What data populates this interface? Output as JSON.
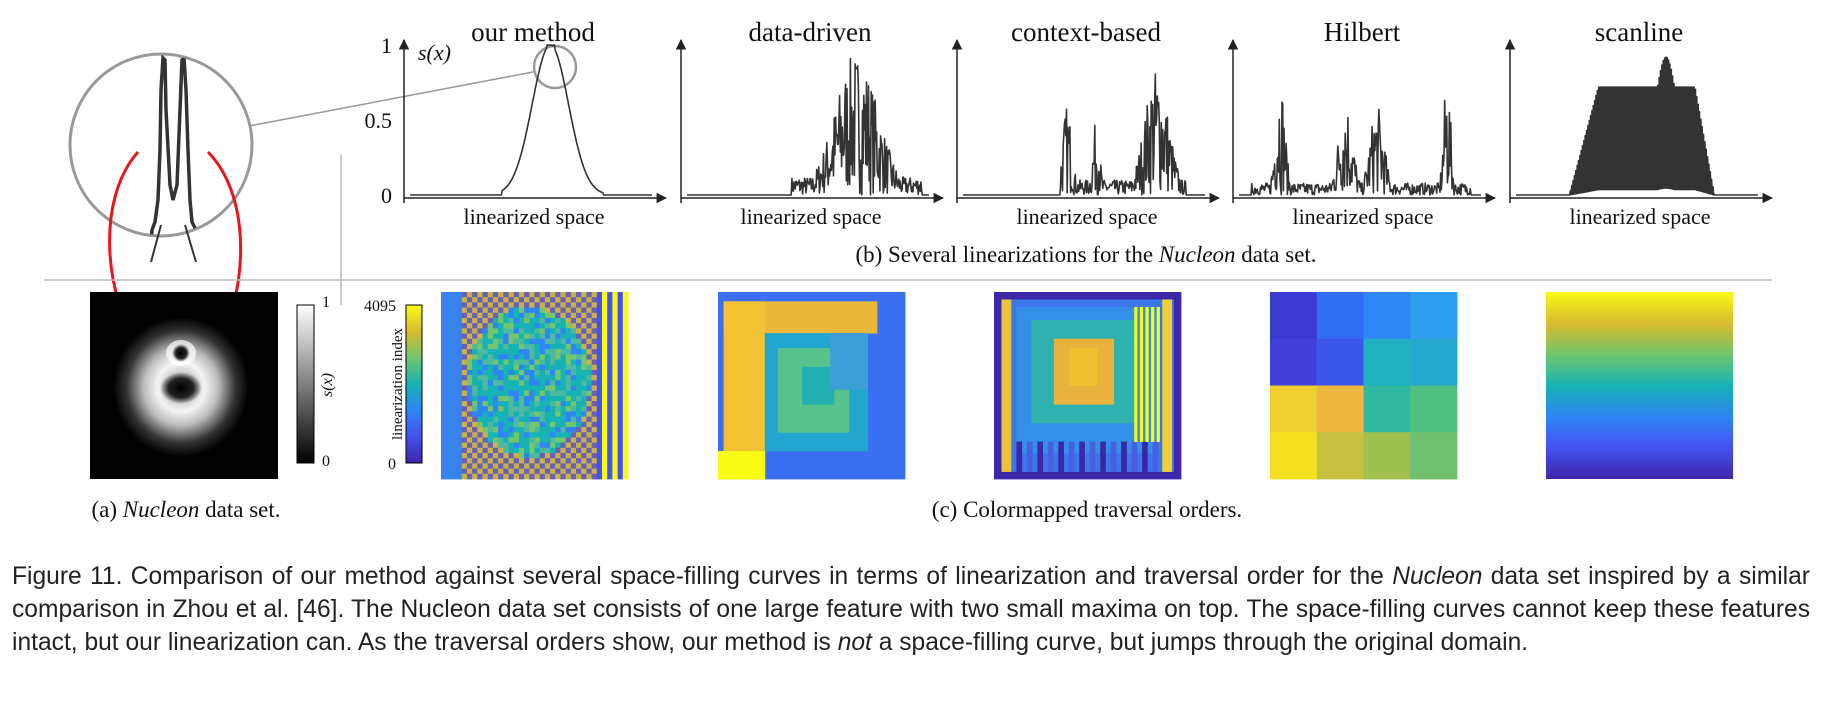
{
  "panel_b": {
    "titles": [
      "our method",
      "data-driven",
      "context-based",
      "Hilbert",
      "scanline"
    ],
    "yticks": [
      1,
      0.5,
      0
    ],
    "y_axis_label": "s(x)",
    "x_axis_labels": [
      "linearized space",
      "linearized space",
      "linearized space",
      "linearized space",
      "linearized space"
    ],
    "caption": [
      "(b) Several linearizations for the ",
      "Nucleon",
      " data set."
    ]
  },
  "panel_a": {
    "colorbar_ticks": [
      1,
      0
    ],
    "colorbar_label": "s(x)",
    "caption": [
      "(a) ",
      "Nucleon",
      " data set."
    ]
  },
  "panel_c": {
    "colorbar_ticks": [
      4095,
      0
    ],
    "colorbar_label": "linearization index",
    "caption": "(c) Colormapped traversal orders."
  },
  "figure_caption": [
    "Figure 11. Comparison of our method against several space-filling curves in terms of linearization and traversal order for the ",
    "Nucleon",
    " data set inspired by a similar comparison in Zhou et al. [46].  The Nucleon data set consists of one large feature with two small maxima on top.  The space-filling curves cannot keep these features intact, but our linearization can. As the traversal orders show, our method is ",
    "not",
    " a space-filling curve, but jumps through the original domain."
  ]
}
